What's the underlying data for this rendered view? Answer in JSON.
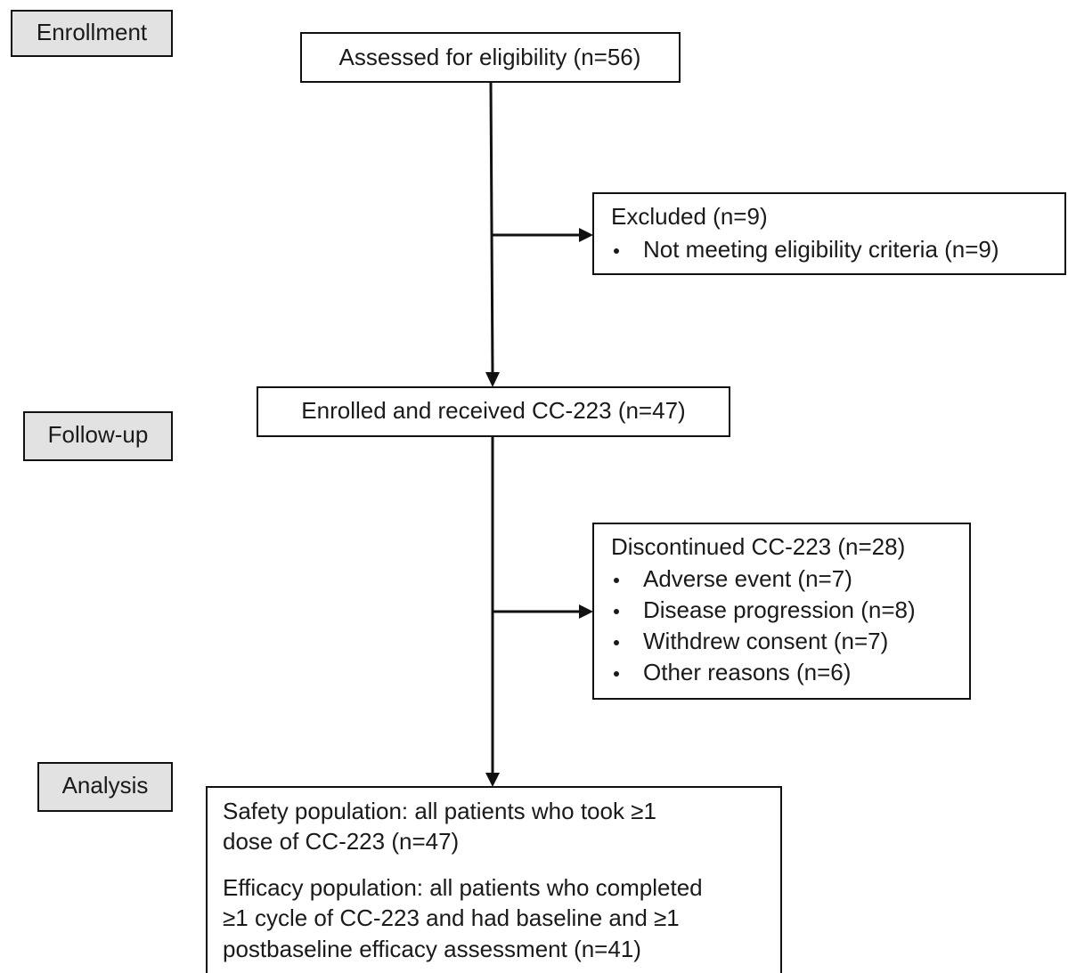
{
  "stages": [
    "Enrollment",
    "Follow-up",
    "Analysis"
  ],
  "nodes": [
    {
      "title": "Assessed for eligibility (n=56)"
    },
    {
      "title": "Excluded (n=9)",
      "items": [
        "Not meeting eligibility criteria (n=9)"
      ]
    },
    {
      "title": "Enrolled and received CC-223 (n=47)"
    },
    {
      "title": "Discontinued CC-223 (n=28)",
      "items": [
        "Adverse event (n=7)",
        "Disease progression (n=8)",
        "Withdrew consent (n=7)",
        "Other reasons (n=6)"
      ]
    },
    {
      "paragraphs": [
        [
          "Safety population: all patients who took ≥1",
          "dose of CC-223 (n=47)"
        ],
        [
          "Efficacy population: all patients who completed",
          "≥1 cycle of CC-223 and had baseline and ≥1",
          "postbaseline efficacy assessment (n=41)"
        ]
      ]
    }
  ]
}
